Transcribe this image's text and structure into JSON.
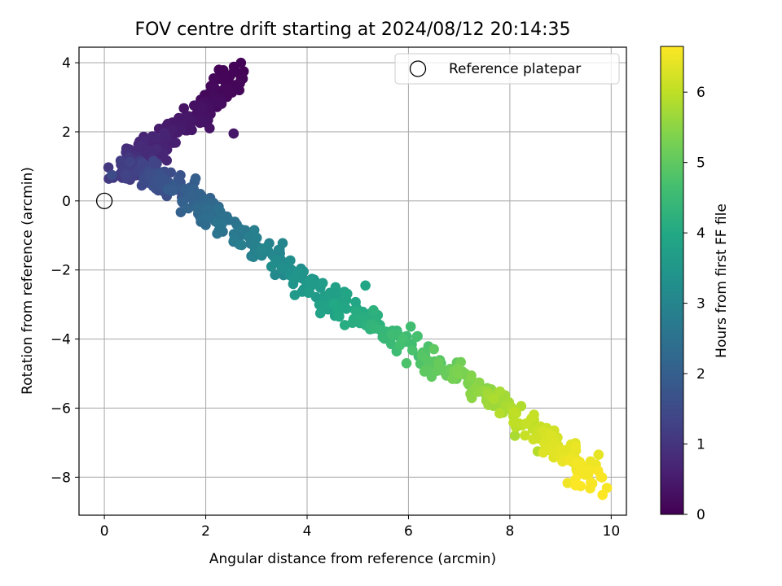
{
  "chart_data": {
    "type": "scatter",
    "title": "FOV centre drift starting at 2024/08/12 20:14:35",
    "xlabel": "Angular distance from reference (arcmin)",
    "ylabel": "Rotation from reference (arcmin)",
    "xlim": [
      -0.5,
      10.3
    ],
    "ylim": [
      -9.1,
      4.45
    ],
    "xticks": [
      0,
      2,
      4,
      6,
      8,
      10
    ],
    "yticks": [
      -8,
      -6,
      -4,
      -2,
      0,
      2,
      4
    ],
    "grid": true,
    "colormap": "viridis",
    "colorbar": {
      "label": "Hours from first FF file",
      "range": [
        0,
        6.65
      ],
      "ticks": [
        0,
        1,
        2,
        3,
        4,
        5,
        6
      ]
    },
    "reference": {
      "name": "Reference platepar",
      "x": 0,
      "y": 0
    },
    "legend": {
      "position": "top-right",
      "entries": [
        "Reference platepar"
      ]
    },
    "track": [
      {
        "x": 2.6,
        "y": 3.65,
        "h": 0.05
      },
      {
        "x": 2.4,
        "y": 3.3,
        "h": 0.1
      },
      {
        "x": 2.2,
        "y": 3.0,
        "h": 0.15
      },
      {
        "x": 1.95,
        "y": 2.6,
        "h": 0.25
      },
      {
        "x": 1.75,
        "y": 2.5,
        "h": 0.3
      },
      {
        "x": 1.6,
        "y": 2.2,
        "h": 0.4
      },
      {
        "x": 1.3,
        "y": 2.0,
        "h": 0.5
      },
      {
        "x": 1.1,
        "y": 1.7,
        "h": 0.6
      },
      {
        "x": 0.9,
        "y": 1.5,
        "h": 0.7
      },
      {
        "x": 0.7,
        "y": 1.3,
        "h": 0.8
      },
      {
        "x": 0.5,
        "y": 1.05,
        "h": 0.95
      },
      {
        "x": 0.4,
        "y": 0.9,
        "h": 1.1
      },
      {
        "x": 0.55,
        "y": 0.85,
        "h": 1.25
      },
      {
        "x": 0.9,
        "y": 0.7,
        "h": 1.45
      },
      {
        "x": 1.2,
        "y": 0.5,
        "h": 1.65
      },
      {
        "x": 1.5,
        "y": 0.3,
        "h": 1.85
      },
      {
        "x": 1.75,
        "y": 0.1,
        "h": 2.0
      },
      {
        "x": 2.0,
        "y": -0.3,
        "h": 2.2
      },
      {
        "x": 2.3,
        "y": -0.6,
        "h": 2.45
      },
      {
        "x": 2.7,
        "y": -0.9,
        "h": 2.65
      },
      {
        "x": 3.0,
        "y": -1.15,
        "h": 2.85
      },
      {
        "x": 3.4,
        "y": -1.6,
        "h": 3.05
      },
      {
        "x": 3.7,
        "y": -2.1,
        "h": 3.3
      },
      {
        "x": 4.2,
        "y": -2.65,
        "h": 3.6
      },
      {
        "x": 4.6,
        "y": -3.0,
        "h": 3.85
      },
      {
        "x": 5.0,
        "y": -3.3,
        "h": 4.05
      },
      {
        "x": 5.4,
        "y": -3.6,
        "h": 4.3
      },
      {
        "x": 5.8,
        "y": -4.0,
        "h": 4.5
      },
      {
        "x": 6.3,
        "y": -4.45,
        "h": 4.8
      },
      {
        "x": 6.8,
        "y": -4.9,
        "h": 5.1
      },
      {
        "x": 7.3,
        "y": -5.3,
        "h": 5.4
      },
      {
        "x": 7.75,
        "y": -5.8,
        "h": 5.7
      },
      {
        "x": 8.2,
        "y": -6.2,
        "h": 5.95
      },
      {
        "x": 8.6,
        "y": -6.75,
        "h": 6.15
      },
      {
        "x": 9.0,
        "y": -7.2,
        "h": 6.35
      },
      {
        "x": 9.4,
        "y": -7.7,
        "h": 6.5
      },
      {
        "x": 9.7,
        "y": -8.3,
        "h": 6.65
      }
    ],
    "spread_x": 0.28,
    "spread_y": 0.32,
    "point_count": 720,
    "outliers": [
      {
        "x": 2.55,
        "y": 1.95,
        "h": 0.4
      },
      {
        "x": 2.75,
        "y": 3.75,
        "h": 0.05
      },
      {
        "x": 5.15,
        "y": -2.45,
        "h": 3.9
      },
      {
        "x": 2.9,
        "y": -1.6,
        "h": 2.8
      },
      {
        "x": 1.0,
        "y": 0.85,
        "h": 1.2
      },
      {
        "x": 6.2,
        "y": -4.5,
        "h": 4.6
      },
      {
        "x": 8.1,
        "y": -6.8,
        "h": 5.8
      },
      {
        "x": 8.55,
        "y": -7.25,
        "h": 5.9
      },
      {
        "x": 9.75,
        "y": -7.35,
        "h": 6.4
      },
      {
        "x": 9.6,
        "y": -8.15,
        "h": 6.6
      },
      {
        "x": 1.8,
        "y": 0.65,
        "h": 2.0
      },
      {
        "x": 0.15,
        "y": 0.75,
        "h": 1.5
      }
    ]
  }
}
